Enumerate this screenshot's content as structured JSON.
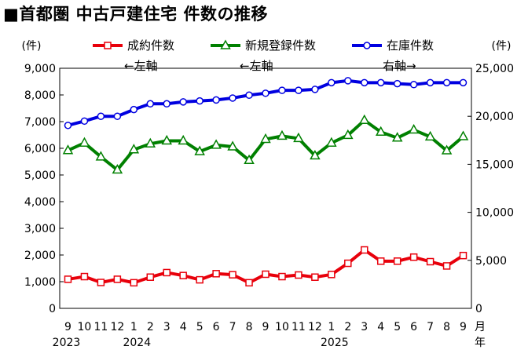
{
  "title": "■首都圏 中古戸建住宅 件数の推移",
  "chart_data": {
    "type": "line",
    "title": "■首都圏 中古戸建住宅 件数の推移",
    "left_axis": {
      "unit_label": "(件)",
      "ylim": [
        0,
        9000
      ],
      "ticks": [
        "0",
        "1,000",
        "2,000",
        "3,000",
        "4,000",
        "5,000",
        "6,000",
        "7,000",
        "8,000",
        "9,000"
      ]
    },
    "right_axis": {
      "unit_label": "(件)",
      "ylim": [
        0,
        25000
      ],
      "ticks": [
        "0",
        "5,000",
        "10,000",
        "15,000",
        "20,000",
        "25,000"
      ]
    },
    "x_month_labels": [
      "9",
      "10",
      "11",
      "12",
      "1",
      "2",
      "3",
      "4",
      "5",
      "6",
      "7",
      "8",
      "9",
      "10",
      "11",
      "12",
      "1",
      "2",
      "3",
      "4",
      "5",
      "6",
      "7",
      "8",
      "9"
    ],
    "x_year_labels": [
      {
        "index": 0,
        "text": "2023"
      },
      {
        "index": 4,
        "text": "2024"
      },
      {
        "index": 16,
        "text": "2025"
      }
    ],
    "x_unit_month": "月",
    "x_unit_year": "年",
    "grid": false,
    "legend_position": "top",
    "series": [
      {
        "name": "成約件数",
        "axis_note": "←左軸",
        "axis": "left",
        "color": "#e8000b",
        "marker": "square",
        "values": [
          1090,
          1190,
          970,
          1090,
          960,
          1170,
          1340,
          1230,
          1070,
          1300,
          1260,
          960,
          1280,
          1190,
          1250,
          1170,
          1270,
          1690,
          2190,
          1770,
          1770,
          1920,
          1750,
          1590,
          1980
        ]
      },
      {
        "name": "新規登録件数",
        "axis_note": "←左軸",
        "axis": "left",
        "color": "#008000",
        "marker": "triangle",
        "values": [
          5920,
          6200,
          5680,
          5190,
          5950,
          6170,
          6280,
          6280,
          5880,
          6120,
          6060,
          5550,
          6340,
          6460,
          6370,
          5720,
          6200,
          6490,
          7050,
          6610,
          6390,
          6690,
          6430,
          5910,
          6440
        ]
      },
      {
        "name": "在庫件数",
        "axis_note": "右軸→",
        "axis": "right",
        "color": "#0000e0",
        "marker": "circle",
        "values": [
          19050,
          19500,
          20000,
          20000,
          20700,
          21300,
          21300,
          21500,
          21600,
          21700,
          21900,
          22200,
          22400,
          22700,
          22700,
          22800,
          23500,
          23700,
          23500,
          23500,
          23400,
          23300,
          23500,
          23500,
          23500
        ]
      }
    ]
  }
}
